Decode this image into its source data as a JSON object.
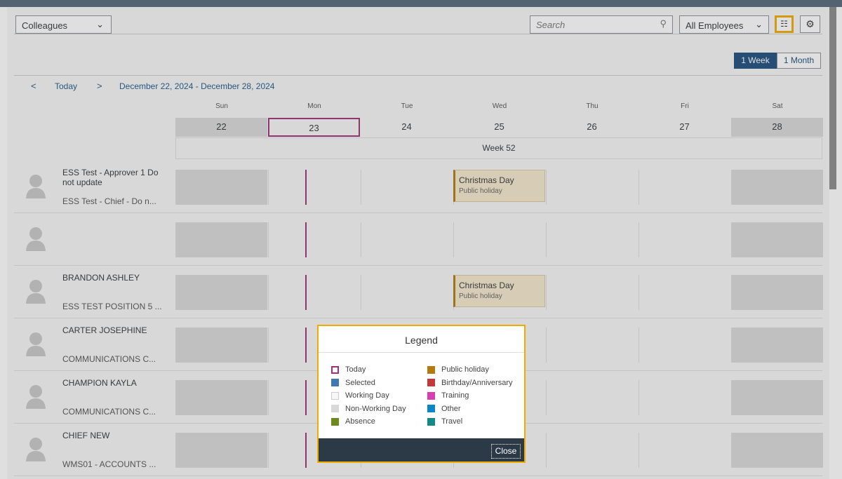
{
  "toolbar": {
    "view_select": "Colleagues",
    "search_placeholder": "Search",
    "filter_select": "All Employees"
  },
  "view_toggle": [
    "1 Week",
    "1 Month"
  ],
  "nav": {
    "today": "Today",
    "range": "December 22, 2024 - December 28, 2024"
  },
  "days": [
    {
      "name": "Sun",
      "date": "22",
      "weekend": true
    },
    {
      "name": "Mon",
      "date": "23",
      "today": true
    },
    {
      "name": "Tue",
      "date": "24"
    },
    {
      "name": "Wed",
      "date": "25"
    },
    {
      "name": "Thu",
      "date": "26"
    },
    {
      "name": "Fri",
      "date": "27"
    },
    {
      "name": "Sat",
      "date": "28",
      "weekend": true
    }
  ],
  "week": "Week 52",
  "employees": [
    {
      "name": "ESS Test - Approver 1 Do not update",
      "position": "ESS Test - Chief - Do n...",
      "event": {
        "title": "Christmas Day",
        "type": "Public holiday"
      }
    },
    {
      "name": null,
      "position": null
    },
    {
      "name": "BRANDON ASHLEY",
      "position": "ESS TEST POSITION 5 ...",
      "event": {
        "title": "Christmas Day",
        "type": "Public holiday"
      }
    },
    {
      "name": "CARTER JOSEPHINE",
      "position": "COMMUNICATIONS C..."
    },
    {
      "name": "CHAMPION KAYLA",
      "position": "COMMUNICATIONS C..."
    },
    {
      "name": "CHIEF NEW",
      "position": "WMS01 - ACCOUNTS ..."
    }
  ],
  "legend": {
    "title": "Legend",
    "items": [
      {
        "label": "Today",
        "color": "#a0307a",
        "outline": true
      },
      {
        "label": "Selected",
        "color": "#3f78b4"
      },
      {
        "label": "Working Day",
        "color": "#f7f7f7"
      },
      {
        "label": "Non-Working Day",
        "color": "#d9d9d9"
      },
      {
        "label": "Absence",
        "color": "#6f8a1c"
      },
      {
        "label": "Public holiday",
        "color": "#b37a0f"
      },
      {
        "label": "Birthday/Anniversary",
        "color": "#c2393b"
      },
      {
        "label": "Training",
        "color": "#d63fb4"
      },
      {
        "label": "Other",
        "color": "#0a86c6"
      },
      {
        "label": "Travel",
        "color": "#148787"
      }
    ],
    "close": "Close"
  }
}
